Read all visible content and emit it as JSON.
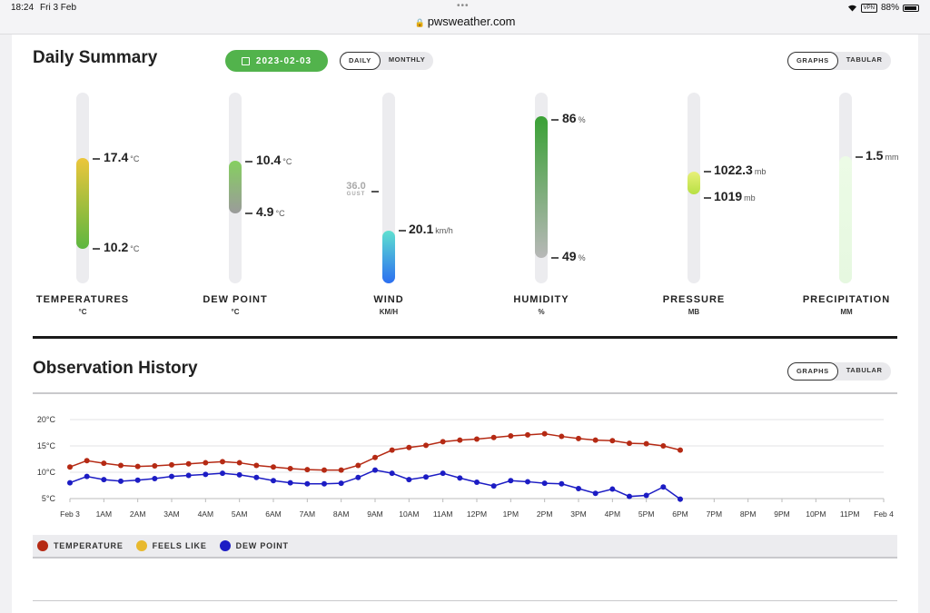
{
  "status_bar": {
    "time": "18:24",
    "date": "Fri 3 Feb",
    "dots": "•••",
    "vpn": "VPN",
    "battery": "88%"
  },
  "url_bar": {
    "domain": "pwsweather.com"
  },
  "daily_summary": {
    "title": "Daily Summary",
    "date": "2023-02-03",
    "period_toggle": {
      "daily": "DAILY",
      "monthly": "MONTHLY",
      "selected": "DAILY"
    },
    "view_toggle": {
      "graphs": "GRAPHS",
      "tabular": "TABULAR",
      "selected": "GRAPHS"
    },
    "gauges": {
      "temperatures": {
        "label": "TEMPERATURES",
        "unit": "°C",
        "high": "17.4",
        "high_unit": "°C",
        "low": "10.2",
        "low_unit": "°C",
        "colors": [
          "#ecc63b",
          "#5db640"
        ]
      },
      "dew_point": {
        "label": "DEW POINT",
        "unit": "°C",
        "high": "10.4",
        "high_unit": "°C",
        "low": "4.9",
        "low_unit": "°C",
        "colors": [
          "#85cf5f",
          "#9b9b9b"
        ]
      },
      "wind": {
        "label": "WIND",
        "unit": "KM/H",
        "value": "20.1",
        "value_unit": "km/h",
        "gust_value": "36.0",
        "gust_label": "GUST",
        "colors": [
          "#5fe0d0",
          "#2c6ff0"
        ]
      },
      "humidity": {
        "label": "HUMIDITY",
        "unit": "%",
        "high": "86",
        "high_unit": "%",
        "low": "49",
        "low_unit": "%",
        "colors": [
          "#3aa135",
          "#b8b8b8"
        ]
      },
      "pressure": {
        "label": "PRESSURE",
        "unit": "MB",
        "high": "1022.3",
        "high_unit": "mb",
        "low": "1019",
        "low_unit": "mb",
        "colors": [
          "#e8f079",
          "#b7e043"
        ]
      },
      "precipitation": {
        "label": "PRECIPITATION",
        "unit": "MM",
        "value": "1.5",
        "value_unit": "mm",
        "colors": [
          "#ecfbe6",
          "#e6f8e0"
        ]
      }
    }
  },
  "observation_history": {
    "title": "Observation History",
    "view_toggle": {
      "graphs": "GRAPHS",
      "tabular": "TABULAR",
      "selected": "GRAPHS"
    },
    "legend": [
      {
        "label": "TEMPERATURE",
        "color": "#b52a14"
      },
      {
        "label": "FEELS LIKE",
        "color": "#e8b92e"
      },
      {
        "label": "DEW POINT",
        "color": "#1c1cc4"
      }
    ]
  },
  "chart_data": {
    "type": "line",
    "title": "",
    "xlabel": "",
    "ylabel": "",
    "x_ticks": [
      "Feb 3",
      "1AM",
      "2AM",
      "3AM",
      "4AM",
      "5AM",
      "6AM",
      "7AM",
      "8AM",
      "9AM",
      "10AM",
      "11AM",
      "12PM",
      "1PM",
      "2PM",
      "3PM",
      "4PM",
      "5PM",
      "6PM",
      "7PM",
      "8PM",
      "9PM",
      "10PM",
      "11PM",
      "Feb 4"
    ],
    "y_ticks": [
      "20°C",
      "15°C",
      "10°C",
      "5°C"
    ],
    "y_tick_values": [
      20,
      15,
      10,
      5
    ],
    "ylim": [
      5,
      20
    ],
    "xlim_hours": [
      0,
      24
    ],
    "grid": true,
    "series": [
      {
        "name": "TEMPERATURE",
        "color": "#b52a14",
        "x_hours": [
          0,
          0.5,
          1,
          1.5,
          2,
          2.5,
          3,
          3.5,
          4,
          4.5,
          5,
          5.5,
          6,
          6.5,
          7,
          7.5,
          8,
          8.5,
          9,
          9.5,
          10,
          10.5,
          11,
          11.5,
          12,
          12.5,
          13,
          13.5,
          14,
          14.5,
          15,
          15.5,
          16,
          16.5,
          17,
          17.5,
          18
        ],
        "values": [
          11.0,
          12.2,
          11.7,
          11.3,
          11.1,
          11.2,
          11.4,
          11.6,
          11.8,
          12.0,
          11.8,
          11.3,
          11.0,
          10.7,
          10.5,
          10.4,
          10.4,
          11.3,
          12.8,
          14.2,
          14.7,
          15.1,
          15.8,
          16.1,
          16.3,
          16.6,
          16.9,
          17.1,
          17.3,
          16.8,
          16.4,
          16.1,
          16.0,
          15.5,
          15.4,
          15.0,
          14.2
        ]
      },
      {
        "name": "DEW POINT",
        "color": "#1c1cc4",
        "x_hours": [
          0,
          0.5,
          1,
          1.5,
          2,
          2.5,
          3,
          3.5,
          4,
          4.5,
          5,
          5.5,
          6,
          6.5,
          7,
          7.5,
          8,
          8.5,
          9,
          9.5,
          10,
          10.5,
          11,
          11.5,
          12,
          12.5,
          13,
          13.5,
          14,
          14.5,
          15,
          15.5,
          16,
          16.5,
          17,
          17.5,
          18
        ],
        "values": [
          8.0,
          9.2,
          8.6,
          8.3,
          8.5,
          8.8,
          9.2,
          9.4,
          9.6,
          9.8,
          9.5,
          9.0,
          8.4,
          8.0,
          7.8,
          7.8,
          7.9,
          9.0,
          10.4,
          9.8,
          8.6,
          9.1,
          9.8,
          8.9,
          8.1,
          7.4,
          8.4,
          8.2,
          7.9,
          7.8,
          6.9,
          6.0,
          6.8,
          5.4,
          5.6,
          7.2,
          4.9
        ]
      }
    ]
  }
}
